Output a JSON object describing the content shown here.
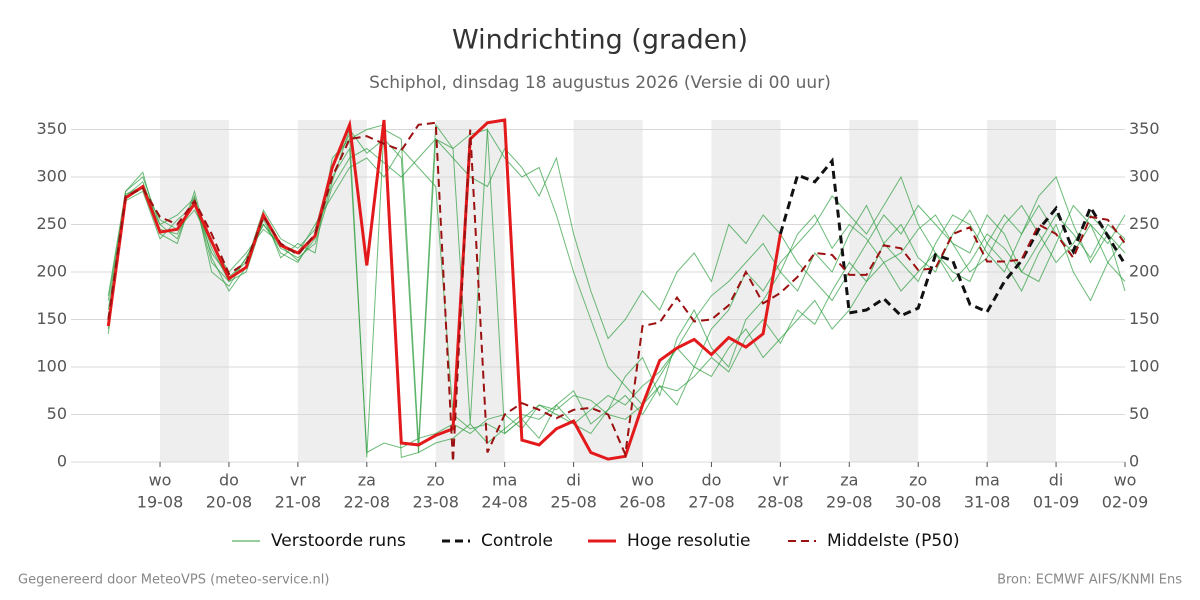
{
  "chart_data": {
    "type": "line",
    "title": "Windrichting (graden)",
    "subtitle": "Schiphol, dinsdag 18 augustus 2026 (Versie di 00 uur)",
    "footer_left": "Gegenereerd door MeteoVPS (meteo-service.nl)",
    "footer_right": "Bron: ECMWF AIFS/KNMI Ens",
    "x": [
      -18,
      -12,
      -6,
      0,
      6,
      12,
      18,
      24,
      30,
      36,
      42,
      48,
      54,
      60,
      66,
      72,
      78,
      84,
      90,
      96,
      102,
      108,
      114,
      120,
      126,
      132,
      138,
      144,
      150,
      156,
      162,
      168,
      174,
      180,
      186,
      192,
      198,
      204,
      210,
      216,
      222,
      228,
      234,
      240,
      246,
      252,
      258,
      264,
      270,
      276,
      282,
      288,
      294,
      300,
      306,
      312,
      318,
      324,
      330,
      336
    ],
    "xlim": [
      -31,
      336
    ],
    "xticks": [
      {
        "value": 0,
        "label": "wo",
        "date": "19-08"
      },
      {
        "value": 24,
        "label": "do",
        "date": "20-08"
      },
      {
        "value": 48,
        "label": "vr",
        "date": "21-08"
      },
      {
        "value": 72,
        "label": "za",
        "date": "22-08"
      },
      {
        "value": 96,
        "label": "zo",
        "date": "23-08"
      },
      {
        "value": 120,
        "label": "ma",
        "date": "24-08"
      },
      {
        "value": 144,
        "label": "di",
        "date": "25-08"
      },
      {
        "value": 168,
        "label": "wo",
        "date": "26-08"
      },
      {
        "value": 192,
        "label": "do",
        "date": "27-08"
      },
      {
        "value": 216,
        "label": "vr",
        "date": "28-08"
      },
      {
        "value": 240,
        "label": "za",
        "date": "29-08"
      },
      {
        "value": 264,
        "label": "zo",
        "date": "30-08"
      },
      {
        "value": 288,
        "label": "ma",
        "date": "31-08"
      },
      {
        "value": 312,
        "label": "di",
        "date": "01-09"
      },
      {
        "value": 336,
        "label": "wo",
        "date": "02-09"
      }
    ],
    "ylim": [
      0,
      360
    ],
    "yticks": [
      0,
      50,
      100,
      150,
      200,
      250,
      300,
      350
    ],
    "grid": true,
    "ensemble": {
      "name": "Verstoorde runs",
      "color": "#2e9e3e",
      "members": [
        [
          160,
          285,
          300,
          250,
          235,
          280,
          200,
          185,
          215,
          250,
          225,
          215,
          230,
          290,
          320,
          330,
          315,
          300,
          320,
          340,
          330,
          345,
          350,
          30,
          45,
          60,
          50,
          40,
          55,
          70,
          60,
          80,
          95,
          120,
          150,
          175,
          190,
          210,
          230,
          200,
          240,
          260,
          225,
          250,
          235,
          210,
          220,
          245,
          260,
          230,
          200,
          215,
          250,
          270,
          240,
          210,
          230,
          260,
          240,
          220
        ],
        [
          170,
          280,
          295,
          245,
          240,
          275,
          210,
          190,
          200,
          255,
          220,
          210,
          240,
          300,
          330,
          10,
          20,
          15,
          25,
          30,
          40,
          30,
          45,
          50,
          35,
          60,
          55,
          70,
          65,
          50,
          45,
          60,
          80,
          75,
          90,
          110,
          95,
          130,
          150,
          125,
          160,
          145,
          180,
          210,
          190,
          230,
          250,
          215,
          200,
          240,
          265,
          230,
          210,
          180,
          220,
          250,
          200,
          170,
          210,
          235
        ],
        [
          150,
          275,
          285,
          235,
          255,
          270,
          220,
          195,
          210,
          265,
          235,
          225,
          245,
          310,
          345,
          5,
          350,
          340,
          20,
          355,
          330,
          40,
          350,
          320,
          300,
          310,
          260,
          200,
          150,
          100,
          80,
          60,
          90,
          120,
          100,
          140,
          160,
          200,
          180,
          210,
          230,
          250,
          280,
          260,
          240,
          270,
          300,
          250,
          220,
          200,
          190,
          230,
          260,
          240,
          280,
          300,
          250,
          210,
          240,
          180
        ],
        [
          140,
          282,
          290,
          255,
          245,
          265,
          230,
          200,
          220,
          245,
          230,
          220,
          250,
          280,
          310,
          320,
          300,
          330,
          310,
          290,
          50,
          35,
          40,
          30,
          45,
          25,
          60,
          75,
          40,
          55,
          90,
          110,
          70,
          130,
          160,
          120,
          100,
          150,
          170,
          200,
          180,
          220,
          200,
          240,
          270,
          230,
          210,
          190,
          230,
          260,
          250,
          220,
          200,
          240,
          270,
          240,
          220,
          250,
          230,
          260
        ],
        [
          175,
          285,
          305,
          240,
          230,
          285,
          215,
          180,
          205,
          260,
          215,
          230,
          220,
          320,
          340,
          350,
          355,
          5,
          10,
          340,
          320,
          300,
          290,
          330,
          310,
          280,
          320,
          240,
          180,
          130,
          150,
          180,
          160,
          200,
          220,
          190,
          250,
          230,
          260,
          240,
          210,
          190,
          170,
          200,
          230,
          260,
          240,
          270,
          250,
          230,
          220,
          260,
          240,
          200,
          190,
          230,
          270,
          250,
          210,
          190
        ],
        [
          135,
          278,
          288,
          250,
          260,
          278,
          225,
          190,
          215,
          250,
          228,
          212,
          235,
          295,
          350,
          325,
          340,
          320,
          10,
          20,
          25,
          40,
          20,
          35,
          50,
          45,
          60,
          40,
          30,
          55,
          70,
          50,
          80,
          60,
          100,
          90,
          120,
          140,
          110,
          130,
          150,
          170,
          140,
          160,
          190,
          210,
          180,
          200,
          220,
          190,
          210,
          240,
          225,
          200,
          230,
          260,
          240,
          215,
          250,
          235
        ]
      ]
    },
    "series": [
      {
        "name": "Controle",
        "color": "#111111",
        "dash": true,
        "width": 3,
        "values": [
          null,
          null,
          null,
          null,
          null,
          null,
          null,
          null,
          null,
          null,
          null,
          null,
          null,
          null,
          null,
          null,
          null,
          null,
          null,
          null,
          null,
          null,
          null,
          null,
          null,
          null,
          null,
          null,
          null,
          null,
          null,
          null,
          null,
          null,
          null,
          null,
          null,
          null,
          null,
          240,
          302,
          295,
          317,
          157,
          160,
          172,
          154,
          162,
          218,
          212,
          166,
          158,
          190,
          212,
          245,
          267,
          222,
          268,
          238,
          208
        ]
      },
      {
        "name": "Hoge resolutie",
        "color": "#e31a1c",
        "dash": false,
        "width": 3,
        "values": [
          143,
          278,
          290,
          242,
          245,
          272,
          232,
          193,
          205,
          260,
          228,
          220,
          238,
          310,
          355,
          207,
          360,
          20,
          18,
          28,
          35,
          340,
          357,
          360,
          23,
          18,
          35,
          43,
          10,
          3,
          6,
          60,
          107,
          120,
          129,
          113,
          131,
          121,
          135,
          240,
          null,
          null,
          null,
          null,
          null,
          null,
          null,
          null,
          null,
          null,
          null,
          null,
          null,
          null,
          null,
          null,
          null,
          null,
          null,
          null
        ]
      },
      {
        "name": "Middelste (P50)",
        "color": "#9b1010",
        "dash": true,
        "width": 2,
        "values": [
          150,
          280,
          288,
          258,
          250,
          275,
          240,
          198,
          210,
          258,
          230,
          218,
          240,
          300,
          340,
          343,
          335,
          328,
          355,
          357,
          0,
          350,
          10,
          50,
          62,
          55,
          46,
          55,
          57,
          50,
          8,
          143,
          147,
          173,
          148,
          150,
          165,
          200,
          167,
          178,
          195,
          220,
          218,
          197,
          197,
          228,
          225,
          202,
          204,
          240,
          247,
          211,
          211,
          213,
          250,
          240,
          215,
          258,
          255,
          230
        ]
      }
    ]
  }
}
